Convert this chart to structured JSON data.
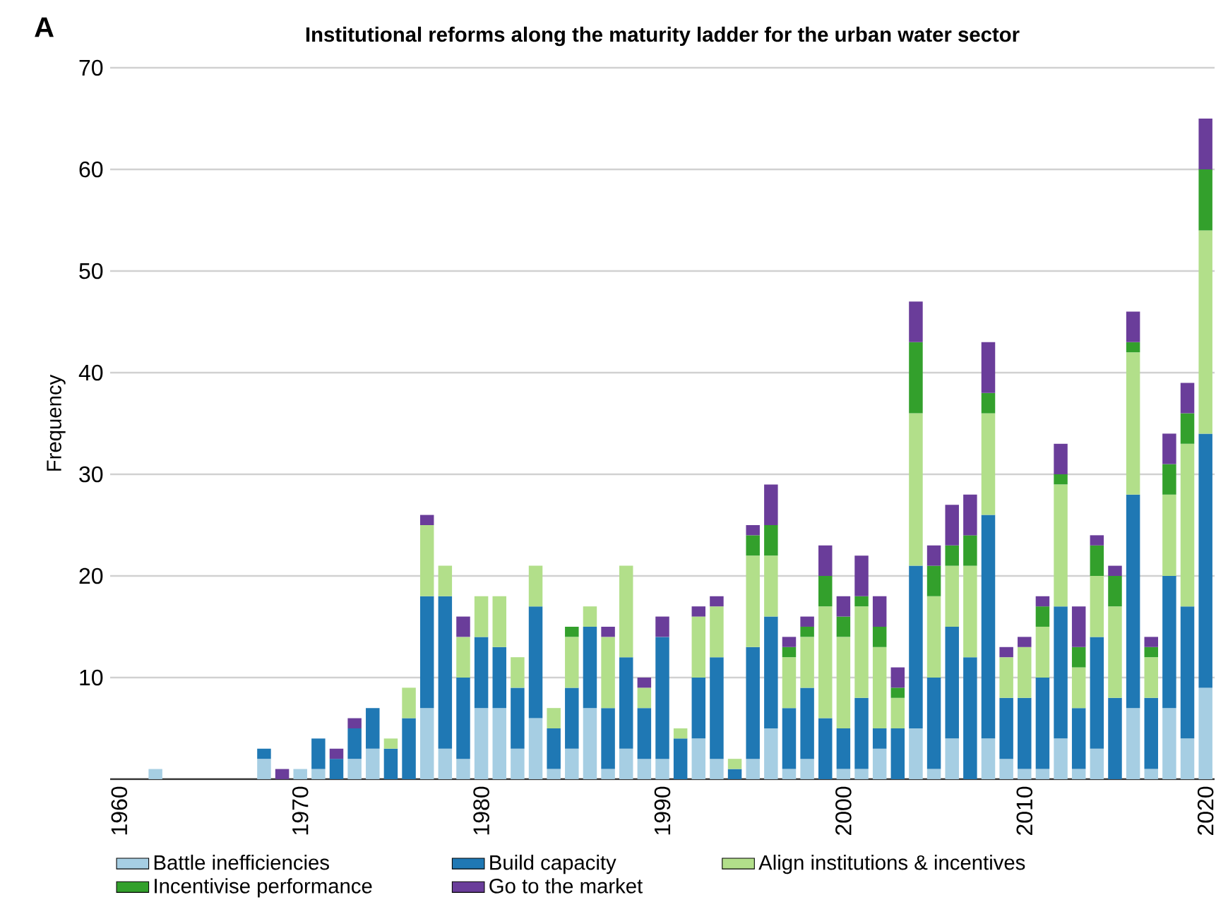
{
  "chart_data": {
    "type": "bar",
    "stacked": true,
    "title": "Institutional reforms along the maturity ladder for the urban water sector",
    "ylabel": "Frequency",
    "annotations": [
      "A"
    ],
    "x": [
      1962,
      1968,
      1969,
      1970,
      1971,
      1972,
      1973,
      1974,
      1975,
      1976,
      1977,
      1978,
      1979,
      1980,
      1981,
      1982,
      1983,
      1984,
      1985,
      1986,
      1987,
      1988,
      1989,
      1990,
      1991,
      1992,
      1993,
      1994,
      1995,
      1996,
      1997,
      1998,
      1999,
      2000,
      2001,
      2002,
      2003,
      2004,
      2005,
      2006,
      2007,
      2008,
      2009,
      2010,
      2011,
      2012,
      2013,
      2014,
      2015,
      2016,
      2017,
      2018,
      2019,
      2020
    ],
    "series": [
      {
        "name": "Battle inefficiencies",
        "color": "#a6cee3",
        "values": [
          1,
          2,
          0,
          1,
          1,
          0,
          2,
          3,
          0,
          0,
          7,
          3,
          2,
          7,
          7,
          3,
          6,
          1,
          3,
          7,
          1,
          3,
          2,
          2,
          0,
          4,
          2,
          0,
          2,
          5,
          1,
          2,
          0,
          1,
          1,
          3,
          0,
          5,
          1,
          4,
          0,
          4,
          2,
          1,
          1,
          4,
          1,
          3,
          0,
          7,
          1,
          7,
          4,
          9
        ]
      },
      {
        "name": "Build capacity",
        "color": "#1f78b4",
        "values": [
          0,
          1,
          0,
          0,
          3,
          2,
          3,
          4,
          3,
          6,
          11,
          15,
          8,
          7,
          6,
          6,
          11,
          4,
          6,
          8,
          6,
          9,
          5,
          12,
          4,
          6,
          10,
          1,
          11,
          11,
          6,
          7,
          6,
          4,
          7,
          2,
          5,
          16,
          9,
          11,
          12,
          22,
          6,
          7,
          9,
          13,
          6,
          11,
          8,
          21,
          7,
          13,
          13,
          25
        ]
      },
      {
        "name": "Align institutions & incentives",
        "color": "#b2df8a",
        "values": [
          0,
          0,
          0,
          0,
          0,
          0,
          0,
          0,
          1,
          3,
          7,
          3,
          4,
          4,
          5,
          3,
          4,
          2,
          5,
          2,
          7,
          9,
          2,
          0,
          1,
          6,
          5,
          1,
          9,
          6,
          5,
          5,
          11,
          9,
          9,
          8,
          3,
          15,
          8,
          6,
          9,
          10,
          4,
          5,
          5,
          12,
          4,
          6,
          9,
          14,
          4,
          8,
          16,
          20
        ]
      },
      {
        "name": "Incentivise performance",
        "color": "#33a02c",
        "values": [
          0,
          0,
          0,
          0,
          0,
          0,
          0,
          0,
          0,
          0,
          0,
          0,
          0,
          0,
          0,
          0,
          0,
          0,
          1,
          0,
          0,
          0,
          0,
          0,
          0,
          0,
          0,
          0,
          2,
          3,
          1,
          1,
          3,
          2,
          1,
          2,
          1,
          7,
          3,
          2,
          3,
          2,
          0,
          0,
          2,
          1,
          2,
          3,
          3,
          1,
          1,
          3,
          3,
          6
        ]
      },
      {
        "name": "Go to the market",
        "color": "#6a3d9a",
        "values": [
          0,
          0,
          1,
          0,
          0,
          1,
          1,
          0,
          0,
          0,
          1,
          0,
          2,
          0,
          0,
          0,
          0,
          0,
          0,
          0,
          1,
          0,
          1,
          2,
          0,
          1,
          1,
          0,
          1,
          4,
          1,
          1,
          3,
          2,
          4,
          3,
          2,
          4,
          2,
          4,
          4,
          5,
          1,
          1,
          1,
          3,
          4,
          1,
          1,
          3,
          1,
          3,
          3,
          5
        ]
      }
    ],
    "xlim": [
      1959.5,
      2020.5
    ],
    "xticks": [
      1960,
      1970,
      1980,
      1990,
      2000,
      2010,
      2020
    ],
    "ylim": [
      0,
      70
    ],
    "yticks": [
      {
        "value": 0,
        "label": null
      },
      10,
      20,
      30,
      40,
      50,
      60,
      70
    ],
    "grid": "y",
    "legend": "bottom"
  }
}
